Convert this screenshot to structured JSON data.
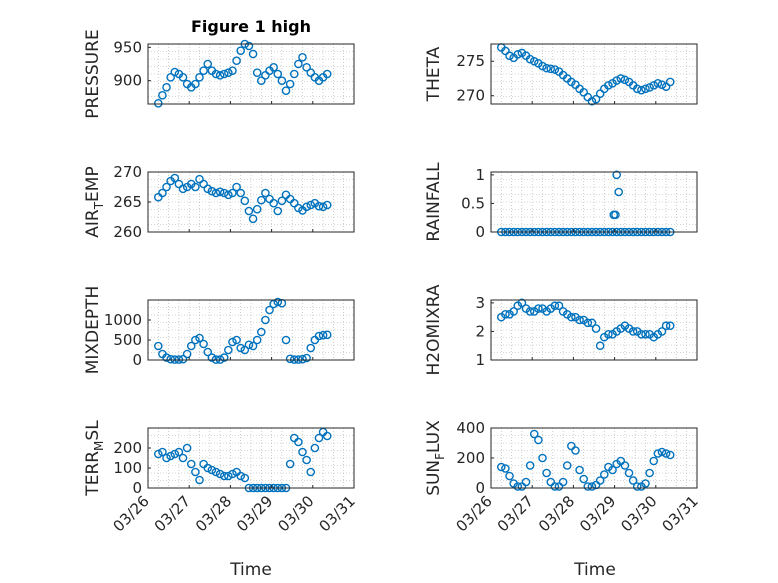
{
  "title": "Figure 1 high",
  "colors": {
    "marker": "#0072BD",
    "axis": "#262626",
    "grid": "#b0b0b0"
  },
  "xlabel": "Time",
  "xticks": [
    "03/26",
    "03/27",
    "03/28",
    "03/29",
    "03/30",
    "03/31"
  ],
  "chart_data": [
    {
      "type": "scatter",
      "ylabel": "PRESSURE",
      "ylabel_sub": "",
      "ylabel_rest": "",
      "ylim": [
        865,
        955
      ],
      "yticks": [
        900,
        950
      ],
      "xlim": [
        0,
        5
      ],
      "grid": true,
      "x": [
        0.25,
        0.35,
        0.45,
        0.55,
        0.65,
        0.75,
        0.85,
        0.95,
        1.05,
        1.15,
        1.25,
        1.35,
        1.45,
        1.55,
        1.65,
        1.75,
        1.85,
        1.95,
        2.05,
        2.15,
        2.25,
        2.35,
        2.45,
        2.55,
        2.65,
        2.75,
        2.85,
        2.95,
        3.05,
        3.15,
        3.25,
        3.35,
        3.45,
        3.55,
        3.65,
        3.75,
        3.85,
        3.95,
        4.05,
        4.15,
        4.25,
        4.35
      ],
      "y": [
        866,
        878,
        890,
        905,
        913,
        910,
        905,
        895,
        890,
        895,
        905,
        915,
        925,
        915,
        910,
        908,
        910,
        912,
        915,
        930,
        945,
        955,
        952,
        940,
        912,
        900,
        908,
        915,
        920,
        910,
        900,
        885,
        895,
        910,
        925,
        935,
        920,
        912,
        905,
        900,
        905,
        910
      ]
    },
    {
      "type": "scatter",
      "ylabel": "THETA",
      "ylabel_sub": "",
      "ylabel_rest": "",
      "ylim": [
        268.8,
        277.5
      ],
      "yticks": [
        270,
        275
      ],
      "xlim": [
        0,
        5
      ],
      "grid": true,
      "x": [
        0.25,
        0.35,
        0.45,
        0.55,
        0.65,
        0.75,
        0.85,
        0.95,
        1.05,
        1.15,
        1.25,
        1.35,
        1.45,
        1.55,
        1.65,
        1.75,
        1.85,
        1.95,
        2.05,
        2.15,
        2.25,
        2.35,
        2.45,
        2.55,
        2.65,
        2.75,
        2.85,
        2.95,
        3.05,
        3.15,
        3.25,
        3.35,
        3.45,
        3.55,
        3.65,
        3.75,
        3.85,
        3.95,
        4.05,
        4.15,
        4.25,
        4.35
      ],
      "y": [
        277,
        276.5,
        275.8,
        275.5,
        276,
        276.2,
        275.8,
        275.3,
        275,
        274.7,
        274.3,
        274,
        273.9,
        273.8,
        273.5,
        273,
        272.5,
        272,
        271.6,
        271,
        270.5,
        269.8,
        269.2,
        269.5,
        270.3,
        271,
        271.5,
        271.8,
        272.2,
        272.5,
        272.3,
        272,
        271.5,
        271,
        270.8,
        271,
        271.2,
        271.5,
        271.8,
        271.6,
        271.3,
        272
      ]
    },
    {
      "type": "scatter",
      "ylabel": "AIR",
      "ylabel_sub": "T",
      "ylabel_rest": "EMP",
      "ylim": [
        260,
        270
      ],
      "yticks": [
        260,
        265,
        270
      ],
      "xlim": [
        0,
        5
      ],
      "grid": true,
      "x": [
        0.25,
        0.35,
        0.45,
        0.55,
        0.65,
        0.75,
        0.85,
        0.95,
        1.05,
        1.15,
        1.25,
        1.35,
        1.45,
        1.55,
        1.65,
        1.75,
        1.85,
        1.95,
        2.05,
        2.15,
        2.25,
        2.35,
        2.45,
        2.55,
        2.65,
        2.75,
        2.85,
        2.95,
        3.05,
        3.15,
        3.25,
        3.35,
        3.45,
        3.55,
        3.65,
        3.75,
        3.85,
        3.95,
        4.05,
        4.15,
        4.25,
        4.35
      ],
      "y": [
        265.8,
        266.5,
        267.5,
        268.5,
        269,
        268,
        267.2,
        267.5,
        268,
        267.5,
        268.8,
        268,
        267.2,
        266.8,
        266.5,
        266.7,
        266.5,
        266.2,
        266.5,
        267.5,
        266.5,
        265.2,
        263.5,
        262.2,
        263.8,
        265.3,
        266.5,
        265.5,
        264.8,
        263.5,
        265.2,
        266.2,
        265.5,
        264.8,
        264,
        263.6,
        264.2,
        264.5,
        264.8,
        264.3,
        264.2,
        264.5
      ]
    },
    {
      "type": "scatter",
      "ylabel": "RAINFALL",
      "ylabel_sub": "",
      "ylabel_rest": "",
      "ylim": [
        0,
        1.05
      ],
      "yticks": [
        0,
        0.5,
        1
      ],
      "xlim": [
        0,
        5
      ],
      "grid": true,
      "x": [
        0.25,
        0.35,
        0.45,
        0.55,
        0.65,
        0.75,
        0.85,
        0.95,
        1.05,
        1.15,
        1.25,
        1.35,
        1.45,
        1.55,
        1.65,
        1.75,
        1.85,
        1.95,
        2.05,
        2.15,
        2.25,
        2.35,
        2.45,
        2.55,
        2.65,
        2.75,
        2.85,
        2.95,
        3.05,
        3.15,
        3.25,
        3.35,
        3.45,
        3.55,
        3.65,
        3.75,
        3.85,
        3.95,
        4.05,
        4.15,
        4.25,
        4.35,
        2.98,
        3.02,
        3.05,
        3.1
      ],
      "y": [
        0,
        0,
        0,
        0,
        0,
        0,
        0,
        0,
        0,
        0,
        0,
        0,
        0,
        0,
        0,
        0,
        0,
        0,
        0,
        0,
        0,
        0,
        0,
        0,
        0,
        0,
        0,
        0,
        0,
        0,
        0,
        0,
        0,
        0,
        0,
        0,
        0,
        0,
        0,
        0,
        0,
        0,
        0.3,
        0.3,
        1.0,
        0.7
      ]
    },
    {
      "type": "scatter",
      "ylabel": "MIXDEPTH",
      "ylabel_sub": "",
      "ylabel_rest": "",
      "ylim": [
        0,
        1500
      ],
      "yticks": [
        0,
        500,
        1000
      ],
      "xlim": [
        0,
        5
      ],
      "grid": true,
      "x": [
        0.25,
        0.35,
        0.45,
        0.55,
        0.65,
        0.75,
        0.85,
        0.95,
        1.05,
        1.15,
        1.25,
        1.35,
        1.45,
        1.55,
        1.65,
        1.75,
        1.85,
        1.95,
        2.05,
        2.15,
        2.25,
        2.35,
        2.45,
        2.55,
        2.65,
        2.75,
        2.85,
        2.95,
        3.05,
        3.15,
        3.25,
        3.35,
        3.45,
        3.55,
        3.65,
        3.75,
        3.85,
        3.95,
        4.05,
        4.15,
        4.25,
        4.35
      ],
      "y": [
        350,
        150,
        60,
        20,
        10,
        10,
        20,
        150,
        350,
        500,
        550,
        400,
        200,
        60,
        10,
        10,
        60,
        250,
        450,
        500,
        300,
        250,
        380,
        350,
        500,
        700,
        1000,
        1250,
        1400,
        1450,
        1420,
        500,
        30,
        10,
        10,
        20,
        50,
        300,
        500,
        600,
        620,
        630
      ]
    },
    {
      "type": "scatter",
      "ylabel": "H2OMIXRA",
      "ylabel_sub": "",
      "ylabel_rest": "",
      "ylim": [
        1,
        3.1
      ],
      "yticks": [
        1,
        2,
        3
      ],
      "xlim": [
        0,
        5
      ],
      "grid": true,
      "x": [
        0.25,
        0.35,
        0.45,
        0.55,
        0.65,
        0.75,
        0.85,
        0.95,
        1.05,
        1.15,
        1.25,
        1.35,
        1.45,
        1.55,
        1.65,
        1.75,
        1.85,
        1.95,
        2.05,
        2.15,
        2.25,
        2.35,
        2.45,
        2.55,
        2.65,
        2.75,
        2.85,
        2.95,
        3.05,
        3.15,
        3.25,
        3.35,
        3.45,
        3.55,
        3.65,
        3.75,
        3.85,
        3.95,
        4.05,
        4.15,
        4.25,
        4.35
      ],
      "y": [
        2.5,
        2.6,
        2.6,
        2.7,
        2.9,
        3.0,
        2.8,
        2.7,
        2.7,
        2.8,
        2.8,
        2.7,
        2.8,
        2.9,
        2.9,
        2.7,
        2.6,
        2.5,
        2.5,
        2.4,
        2.4,
        2.3,
        2.3,
        2.1,
        1.5,
        1.8,
        1.9,
        1.9,
        2.0,
        2.1,
        2.2,
        2.1,
        2.0,
        2.0,
        1.9,
        1.9,
        1.9,
        1.8,
        1.9,
        2.0,
        2.2,
        2.2
      ]
    },
    {
      "type": "scatter",
      "ylabel": "TERR",
      "ylabel_sub": "M",
      "ylabel_rest": "SL",
      "ylim": [
        0,
        300
      ],
      "yticks": [
        0,
        100,
        200
      ],
      "xlim": [
        0,
        5
      ],
      "grid": true,
      "x": [
        0.25,
        0.35,
        0.45,
        0.55,
        0.65,
        0.75,
        0.85,
        0.95,
        1.05,
        1.15,
        1.25,
        1.35,
        1.45,
        1.55,
        1.65,
        1.75,
        1.85,
        1.95,
        2.05,
        2.15,
        2.25,
        2.35,
        2.45,
        2.55,
        2.65,
        2.75,
        2.85,
        2.95,
        3.05,
        3.15,
        3.25,
        3.35,
        3.45,
        3.55,
        3.65,
        3.75,
        3.85,
        3.95,
        4.05,
        4.15,
        4.25,
        4.35
      ],
      "y": [
        170,
        180,
        150,
        160,
        170,
        180,
        150,
        200,
        120,
        80,
        40,
        120,
        100,
        90,
        80,
        70,
        60,
        60,
        70,
        80,
        60,
        50,
        0,
        0,
        0,
        0,
        0,
        0,
        0,
        0,
        0,
        0,
        120,
        250,
        230,
        180,
        140,
        80,
        200,
        250,
        280,
        260
      ]
    },
    {
      "type": "scatter",
      "ylabel": "SUN",
      "ylabel_sub": "F",
      "ylabel_rest": "LUX",
      "ylim": [
        0,
        400
      ],
      "yticks": [
        0,
        200,
        400
      ],
      "xlim": [
        0,
        5
      ],
      "grid": true,
      "x": [
        0.25,
        0.35,
        0.45,
        0.55,
        0.65,
        0.75,
        0.85,
        0.95,
        1.05,
        1.15,
        1.25,
        1.35,
        1.45,
        1.55,
        1.65,
        1.75,
        1.85,
        1.95,
        2.05,
        2.15,
        2.25,
        2.35,
        2.45,
        2.55,
        2.65,
        2.75,
        2.85,
        2.95,
        3.05,
        3.15,
        3.25,
        3.35,
        3.45,
        3.55,
        3.65,
        3.75,
        3.85,
        3.95,
        4.05,
        4.15,
        4.25,
        4.35
      ],
      "y": [
        140,
        130,
        80,
        30,
        10,
        10,
        40,
        150,
        360,
        320,
        200,
        100,
        40,
        10,
        10,
        40,
        150,
        280,
        250,
        120,
        60,
        10,
        10,
        20,
        50,
        90,
        140,
        120,
        160,
        180,
        150,
        100,
        50,
        10,
        10,
        30,
        100,
        180,
        230,
        240,
        230,
        220
      ]
    }
  ]
}
